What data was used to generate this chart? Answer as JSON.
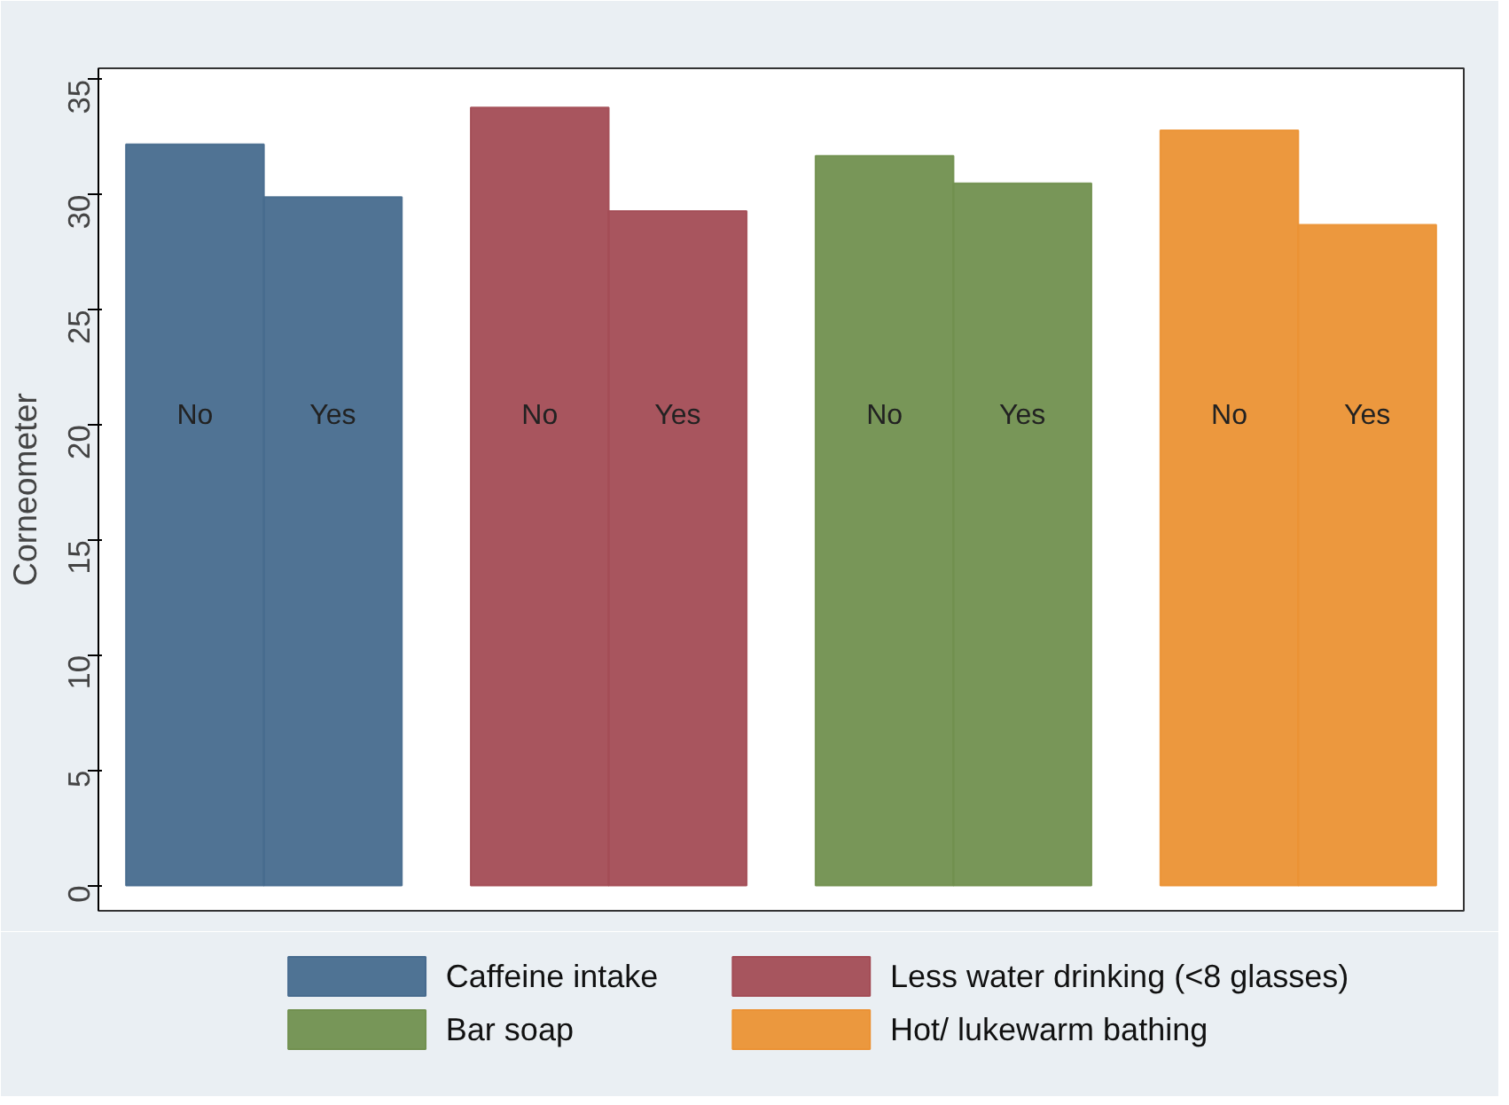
{
  "chart_data": {
    "type": "bar",
    "ylabel": "Corneometer",
    "categories": [
      "No",
      "Yes",
      "No",
      "Yes",
      "No",
      "Yes",
      "No",
      "Yes"
    ],
    "series": [
      {
        "name": "Caffeine intake",
        "color": "#476b8e",
        "values": [
          32.2,
          29.9,
          null,
          null,
          null,
          null,
          null,
          null
        ]
      },
      {
        "name": "Less water drinking (<8 glasses)",
        "color": "#a34c55",
        "values": [
          null,
          null,
          33.8,
          29.3,
          null,
          null,
          null,
          null
        ]
      },
      {
        "name": "Bar soap",
        "color": "#71904f",
        "values": [
          null,
          null,
          null,
          null,
          31.7,
          30.5,
          null,
          null
        ]
      },
      {
        "name": "Hot/ lukewarm bathing",
        "color": "#eb9234",
        "values": [
          null,
          null,
          null,
          null,
          null,
          null,
          32.8,
          28.7
        ]
      }
    ],
    "ylim": [
      -1.1,
      35.5
    ],
    "yticks": [
      0,
      5,
      10,
      15,
      20,
      25,
      30,
      35
    ],
    "grid": false,
    "legend": "bottom",
    "tick_labels": "y"
  }
}
